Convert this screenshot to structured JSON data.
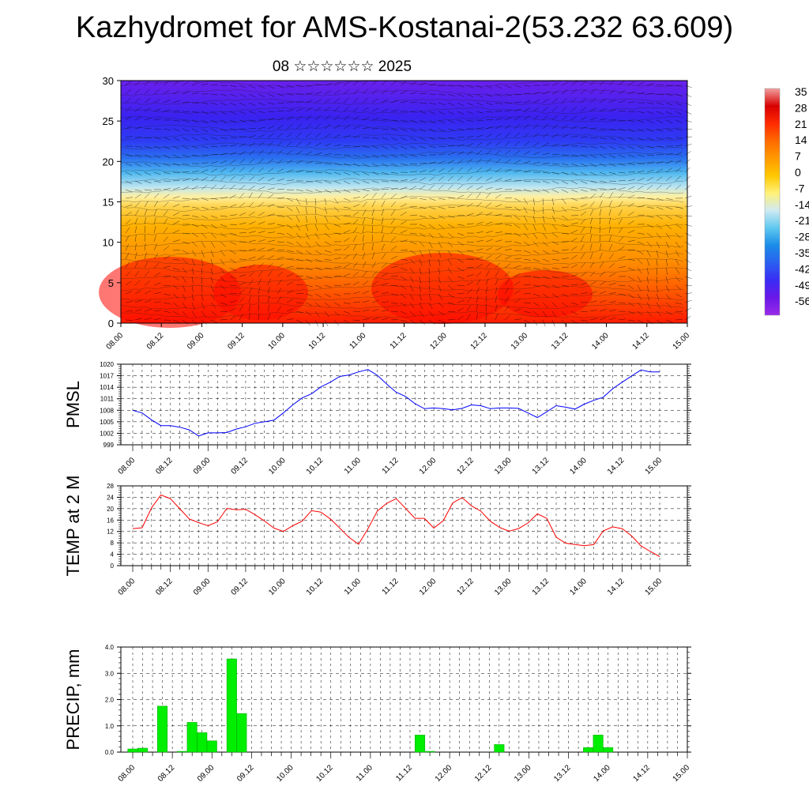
{
  "title": "Kazhydromet for AMS-Kostanai-2(53.232 63.609)",
  "subtitle": "08 ☆☆☆☆☆☆ 2025",
  "colorbar": {
    "labels": [
      "35",
      "28",
      "21",
      "14",
      "7",
      "0",
      "-7",
      "-14",
      "-21",
      "-28",
      "-35",
      "-42",
      "-49",
      "-56"
    ],
    "colors": [
      "#f2a0a0",
      "#d70000",
      "#ff2a00",
      "#ff6a00",
      "#ff9a00",
      "#ffc800",
      "#fff27a",
      "#cfeaf2",
      "#5fc8f0",
      "#1a8ce8",
      "#2a60f0",
      "#3a2cf5",
      "#6a18e8",
      "#9a2ae8"
    ]
  },
  "chart_data": [
    {
      "type": "heatmap",
      "name": "vertical-profile",
      "ylim": [
        0,
        30
      ],
      "yticks": [
        "0",
        "5",
        "10",
        "15",
        "20",
        "25",
        "30"
      ],
      "xticks": [
        "08.00",
        "08.12",
        "09.00",
        "09.12",
        "10.00",
        "10.12",
        "11.00",
        "11.12",
        "12.00",
        "12.12",
        "13.00",
        "13.12",
        "14.00",
        "14.12",
        "15.00"
      ],
      "colorbar_range": [
        -56,
        35
      ]
    },
    {
      "type": "line",
      "name": "pmsl",
      "ylabel": "PMSL",
      "ylim": [
        999,
        1020
      ],
      "yticks": [
        "999",
        "1002",
        "1005",
        "1008",
        "1011",
        "1014",
        "1017",
        "1020"
      ],
      "xticks": [
        "08.00",
        "08.12",
        "09.00",
        "09.12",
        "10.00",
        "10.12",
        "11.00",
        "11.12",
        "12.00",
        "12.12",
        "13.00",
        "13.12",
        "14.00",
        "14.12",
        "15.00"
      ],
      "color": "#0000ff",
      "x_hours": [
        0,
        3,
        6,
        9,
        12,
        15,
        18,
        21,
        24,
        27,
        30,
        33,
        36,
        39,
        42,
        45,
        48,
        51,
        54,
        57,
        60,
        63,
        66,
        69,
        72,
        75,
        78,
        81,
        84,
        87,
        90,
        93,
        96,
        99,
        102,
        105,
        108,
        111,
        114,
        117,
        120,
        123,
        126,
        129,
        132,
        135,
        138,
        141,
        144,
        147,
        150,
        153,
        156,
        159,
        162,
        165,
        168
      ],
      "values": [
        1008,
        1007.3,
        1005.5,
        1004,
        1004,
        1003.6,
        1002.9,
        1001.3,
        1002.1,
        1002.1,
        1002.2,
        1003.1,
        1003.7,
        1004.6,
        1005,
        1005.4,
        1007.3,
        1009.4,
        1011.2,
        1012.3,
        1014.1,
        1015.3,
        1016.8,
        1017.2,
        1018,
        1018.6,
        1017.1,
        1014.8,
        1012.7,
        1011.6,
        1009.7,
        1008.4,
        1008.6,
        1008.4,
        1008.1,
        1008.5,
        1009.4,
        1009.2,
        1008.4,
        1008.6,
        1008.6,
        1008.5,
        1007.3,
        1006.1,
        1007.6,
        1009.2,
        1008.8,
        1008.3,
        1009.6,
        1010.6,
        1011.4,
        1013.6,
        1015.3,
        1016.9,
        1018.5,
        1018,
        1018
      ]
    },
    {
      "type": "line",
      "name": "temp-2m",
      "ylabel": "TEMP at 2 M",
      "ylim": [
        0,
        28
      ],
      "yticks": [
        "0",
        "4",
        "8",
        "12",
        "16",
        "20",
        "24",
        "28"
      ],
      "xticks": [
        "08.00",
        "08.12",
        "09.00",
        "09.12",
        "10.00",
        "10.12",
        "11.00",
        "11.12",
        "12.00",
        "12.12",
        "13.00",
        "13.12",
        "14.00",
        "14.12",
        "15.00"
      ],
      "color": "#ff0000",
      "x_hours": [
        0,
        3,
        6,
        9,
        12,
        15,
        18,
        21,
        24,
        27,
        30,
        33,
        36,
        39,
        42,
        45,
        48,
        51,
        54,
        57,
        60,
        63,
        66,
        69,
        72,
        75,
        78,
        81,
        84,
        87,
        90,
        93,
        96,
        99,
        102,
        105,
        108,
        111,
        114,
        117,
        120,
        123,
        126,
        129,
        132,
        135,
        138,
        141,
        144,
        147,
        150,
        153,
        156,
        159,
        162,
        165,
        168
      ],
      "values": [
        13,
        13.3,
        20.3,
        24.8,
        23.5,
        20,
        16.4,
        15.1,
        14,
        15.4,
        20.1,
        19.6,
        19.8,
        17.9,
        15.7,
        13.2,
        12,
        14,
        15.6,
        19.3,
        18.8,
        16.4,
        13.2,
        9.9,
        7.5,
        13,
        19.2,
        21.9,
        23.5,
        20.1,
        16.6,
        16.6,
        13.2,
        15.8,
        22,
        23.9,
        21,
        19.1,
        15.6,
        13.4,
        12.1,
        13,
        15,
        18.2,
        16.6,
        10,
        7.9,
        7.4,
        7,
        7.4,
        12.2,
        13.6,
        13,
        10.5,
        7,
        5,
        3.2
      ]
    },
    {
      "type": "bar",
      "name": "precip",
      "ylabel": "PRECIP, mm",
      "ylim": [
        0,
        4
      ],
      "yticks": [
        "0.0",
        "1.0",
        "2.0",
        "3.0",
        "4.0"
      ],
      "xticks": [
        "08.00",
        "08.12",
        "09.00",
        "09.12",
        "10.00",
        "10.12",
        "11.00",
        "11.12",
        "12.00",
        "12.12",
        "13.00",
        "13.12",
        "14.00",
        "14.12",
        "15.00"
      ],
      "color": "#00ee00",
      "x_hours": [
        0,
        3,
        9,
        15,
        18,
        21,
        24,
        30,
        33,
        87,
        90,
        111,
        138,
        141,
        144
      ],
      "values": [
        0.12,
        0.15,
        1.75,
        0.03,
        1.13,
        0.74,
        0.43,
        3.55,
        1.47,
        0.65,
        0.03,
        0.29,
        0.17,
        0.65,
        0.17
      ]
    }
  ]
}
